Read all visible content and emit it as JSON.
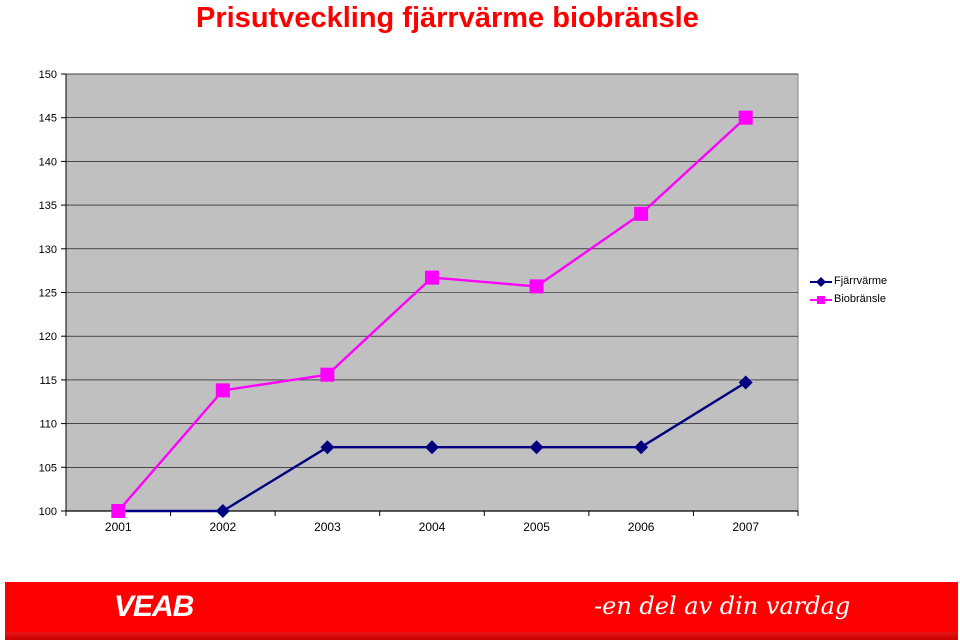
{
  "page": {
    "title": "Prisutveckling fjärrvärme biobränsle",
    "logo_text": "VEAB",
    "tagline": "-en del av din vardag",
    "brand_color": "#ff0000"
  },
  "chart_data": {
    "type": "line",
    "title": "Prisutveckling fjärrvärme biobränsle",
    "xlabel": "",
    "ylabel": "",
    "categories": [
      "2001",
      "2002",
      "2003",
      "2004",
      "2005",
      "2006",
      "2007"
    ],
    "ylim": [
      100,
      150
    ],
    "yticks": [
      100,
      105,
      110,
      115,
      120,
      125,
      130,
      135,
      140,
      145,
      150
    ],
    "grid": true,
    "plot_background": "#c0c0c0",
    "legend_position": "right",
    "series": [
      {
        "name": "Fjärrvärme",
        "color": "#000080",
        "marker": "diamond",
        "values": [
          100,
          100,
          107.3,
          107.3,
          107.3,
          107.3,
          114.7
        ]
      },
      {
        "name": "Biobränsle",
        "color": "#ff00ff",
        "marker": "square",
        "values": [
          100,
          113.8,
          115.6,
          126.7,
          125.7,
          134.0,
          145.0
        ]
      }
    ]
  }
}
